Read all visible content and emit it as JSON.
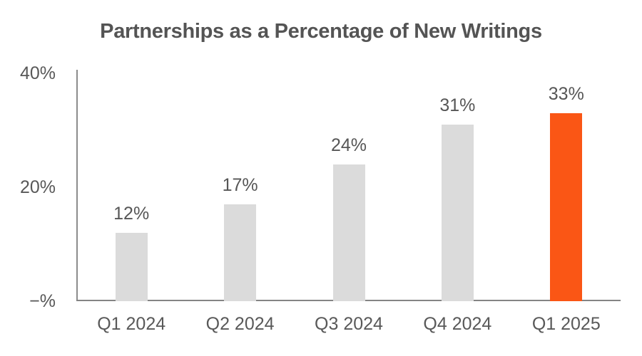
{
  "chart_data": {
    "type": "bar",
    "title": "Partnerships as a Percentage of New Writings",
    "categories": [
      "Q1 2024",
      "Q2 2024",
      "Q3 2024",
      "Q4 2024",
      "Q1 2025"
    ],
    "values": [
      12,
      17,
      24,
      31,
      33
    ],
    "value_labels": [
      "12%",
      "17%",
      "24%",
      "31%",
      "33%"
    ],
    "xlabel": "",
    "ylabel": "",
    "ylim": [
      0,
      40
    ],
    "yticks": [
      {
        "value": 40,
        "label": "40%"
      },
      {
        "value": 20,
        "label": "20%"
      },
      {
        "value": 0,
        "label": "−%"
      }
    ],
    "grid": false,
    "legend": false,
    "highlight_index": 4,
    "colors": {
      "bar_default": "#dbdbdb",
      "bar_highlight": "#fa5615",
      "axis": "#8c8c8c",
      "title_text": "#545454",
      "label_text": "#565656",
      "tick_text": "#585858"
    }
  }
}
